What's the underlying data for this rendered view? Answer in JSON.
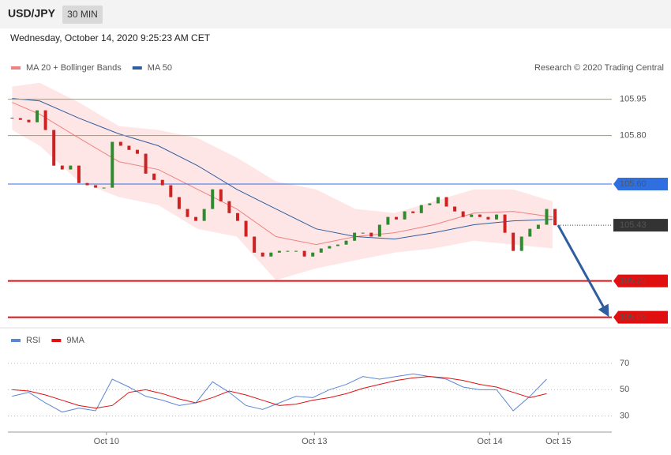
{
  "header": {
    "symbol": "USD/JPY",
    "interval": "30 MIN",
    "timestamp": "Wednesday, October 14, 2020 9:25:23 AM CET"
  },
  "chart_data": [
    {
      "type": "candlestick",
      "legend": [
        {
          "name": "MA 20 + Bollinger Bands",
          "color": "#f08080"
        },
        {
          "name": "MA 50",
          "color": "#2f5d9e"
        }
      ],
      "credit": "Research © 2020 Trading Central",
      "xlim": [
        -0.5,
        71.8
      ],
      "ylim": [
        105.0,
        106.04
      ],
      "closes": [
        105.872,
        105.865,
        105.855,
        105.904,
        105.823,
        105.676,
        105.66,
        105.676,
        105.604,
        105.595,
        105.585,
        105.585,
        105.774,
        105.758,
        105.741,
        105.725,
        105.643,
        105.617,
        105.595,
        105.546,
        105.497,
        105.464,
        105.448,
        105.497,
        105.578,
        105.529,
        105.48,
        105.448,
        105.383,
        105.317,
        105.301,
        105.317,
        105.324,
        105.324,
        105.324,
        105.301,
        105.317,
        105.334,
        105.344,
        105.35,
        105.366,
        105.399,
        105.399,
        105.383,
        105.432,
        105.464,
        105.454,
        105.487,
        105.48,
        105.513,
        105.52,
        105.546,
        105.507,
        105.487,
        105.464,
        105.474,
        105.464,
        105.454,
        105.474,
        105.399,
        105.324,
        105.383,
        105.415,
        105.432,
        105.497,
        105.43
      ],
      "up_color": "#2e8b2e",
      "down_color": "#cc2222",
      "ma_x": [
        0,
        3.3,
        8.0,
        12.8,
        17.5,
        22.2,
        26.9,
        31.6,
        36.4,
        41.1,
        45.8,
        50.5,
        55.3,
        60.0,
        64.7
      ],
      "ma50": [
        105.953,
        105.943,
        105.872,
        105.807,
        105.758,
        105.676,
        105.578,
        105.497,
        105.415,
        105.383,
        105.373,
        105.399,
        105.432,
        105.448,
        105.454
      ],
      "ma20": [
        105.937,
        105.888,
        105.79,
        105.692,
        105.66,
        105.578,
        105.497,
        105.383,
        105.35,
        105.383,
        105.399,
        105.432,
        105.48,
        105.487,
        105.464
      ],
      "band_upper": [
        106.002,
        106.018,
        105.937,
        105.839,
        105.823,
        105.79,
        105.709,
        105.611,
        105.578,
        105.497,
        105.48,
        105.529,
        105.578,
        105.578,
        105.529
      ],
      "band_lower": [
        105.823,
        105.758,
        105.611,
        105.546,
        105.513,
        105.415,
        105.383,
        105.203,
        105.252,
        105.285,
        105.317,
        105.334,
        105.366,
        105.35,
        105.334
      ],
      "levels": [
        {
          "value": 105.95,
          "label": "105.95",
          "color": "#7fb24a",
          "style": "text"
        },
        {
          "value": 105.8,
          "label": "105.80",
          "color": "#7fb24a",
          "style": "text"
        },
        {
          "value": 105.6,
          "label": "105.60",
          "color": "#2f6fe0",
          "style": "box"
        },
        {
          "value": 105.43,
          "label": "105.43",
          "color": "#333333",
          "style": "current"
        },
        {
          "value": 105.2,
          "label": "105.20",
          "color": "#e01010",
          "style": "box"
        },
        {
          "value": 105.05,
          "label": "105.05",
          "color": "#e01010",
          "style": "box"
        }
      ],
      "projection": {
        "from": 105.43,
        "to": 105.05,
        "color": "#2f5d9e"
      }
    },
    {
      "type": "line",
      "xlim": [
        -0.5,
        71.8
      ],
      "ylim": [
        19,
        82
      ],
      "yticks": [
        30,
        50,
        70
      ],
      "xticks": [
        {
          "value": 11.3,
          "label": "Oct 10"
        },
        {
          "value": 36.2,
          "label": "Oct 13"
        },
        {
          "value": 57.2,
          "label": "Oct 14"
        },
        {
          "value": 65.4,
          "label": "Oct 15"
        }
      ],
      "x": [
        0,
        2,
        4,
        6,
        8,
        10,
        12,
        14,
        16,
        18,
        20,
        22,
        24,
        26,
        28,
        30,
        32,
        34,
        36,
        38,
        40,
        42,
        44,
        46,
        48,
        50,
        52,
        54,
        56,
        58,
        60,
        62,
        64
      ],
      "series": [
        {
          "name": "RSI",
          "color": "#5b86d6",
          "values": [
            45,
            48,
            40,
            33,
            36,
            34,
            58,
            52,
            45,
            42,
            38,
            40,
            56,
            48,
            38,
            35,
            40,
            45,
            44,
            50,
            54,
            60,
            58,
            60,
            62,
            60,
            58,
            52,
            50,
            50,
            34,
            45,
            58
          ]
        },
        {
          "name": "9MA",
          "color": "#e01010",
          "values": [
            50,
            49,
            46,
            42,
            38,
            36,
            38,
            48,
            50,
            47,
            43,
            40,
            44,
            49,
            46,
            42,
            38,
            39,
            42,
            44,
            47,
            51,
            54,
            57,
            59,
            60,
            59,
            57,
            54,
            52,
            48,
            44,
            47
          ]
        }
      ]
    }
  ]
}
